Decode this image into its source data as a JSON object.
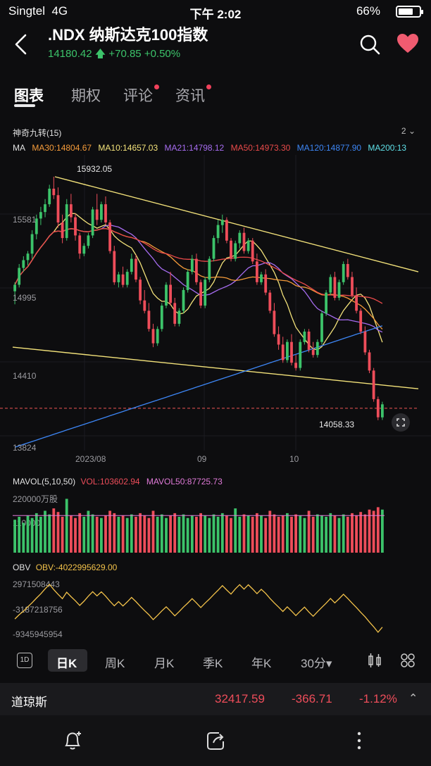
{
  "status_bar": {
    "carrier": "Singtel",
    "network": "4G",
    "time": "下午 2:02",
    "battery": "66%"
  },
  "header": {
    "title": ".NDX  纳斯达克100指数",
    "price": "14180.42",
    "change": "+70.85",
    "change_pct": "+0.50%",
    "price_color": "#3cc36a"
  },
  "tabs": [
    {
      "label": "图表",
      "active": true,
      "dot": false
    },
    {
      "label": "期权",
      "active": false,
      "dot": false
    },
    {
      "label": "评论",
      "active": false,
      "dot": true
    },
    {
      "label": "资讯",
      "active": false,
      "dot": true
    }
  ],
  "indicator": {
    "name": "神奇九转(15)",
    "count": "2"
  },
  "ma": {
    "label": "MA",
    "items": [
      {
        "text": "MA30:14804.67",
        "color": "#f59b3a"
      },
      {
        "text": "MA10:14657.03",
        "color": "#f3e27a"
      },
      {
        "text": "MA21:14798.12",
        "color": "#a66cf0"
      },
      {
        "text": "MA50:14973.30",
        "color": "#e94a4a"
      },
      {
        "text": "MA120:14877.90",
        "color": "#3d86f5"
      },
      {
        "text": "MA200:13",
        "color": "#5fe0e8"
      }
    ]
  },
  "price_axis": [
    "15581",
    "14995",
    "14410",
    "13824"
  ],
  "date_axis": [
    "2023/08",
    "09",
    "10"
  ],
  "annotations": {
    "high": "15932.05",
    "low": "14058.33"
  },
  "volume": {
    "label": "MAVOL(5,10,50)",
    "vol": "VOL:103602.94",
    "mavol50": "MAVOL50:87725.73",
    "axis": [
      "220000万股",
      "110000"
    ]
  },
  "obv": {
    "label": "OBV",
    "value": "OBV:-4022995629.00",
    "axis": [
      "2971508443",
      "-3187218756",
      "-9345945954"
    ]
  },
  "timeframes": [
    {
      "label": "日K",
      "active": true
    },
    {
      "label": "周K",
      "active": false
    },
    {
      "label": "月K",
      "active": false
    },
    {
      "label": "季K",
      "active": false
    },
    {
      "label": "年K",
      "active": false
    },
    {
      "label": "30分▾",
      "active": false
    }
  ],
  "ticker": {
    "name": "道琼斯",
    "price": "32417.59",
    "change": "-366.71",
    "change_pct": "-1.12%"
  },
  "colors": {
    "up": "#3cc36a",
    "down": "#ee4d5a",
    "background": "#0d0d0f"
  },
  "chart_data": {
    "type": "candlestick",
    "ylim": [
      13824,
      16100
    ],
    "candles": [
      [
        15050,
        15120,
        14950,
        15100
      ],
      [
        15100,
        15260,
        15080,
        15230
      ],
      [
        15230,
        15320,
        15200,
        15290
      ],
      [
        15290,
        15360,
        15250,
        15340
      ],
      [
        15340,
        15520,
        15300,
        15490
      ],
      [
        15490,
        15640,
        15450,
        15610
      ],
      [
        15610,
        15700,
        15560,
        15660
      ],
      [
        15660,
        15760,
        15620,
        15720
      ],
      [
        15720,
        15870,
        15700,
        15840
      ],
      [
        15840,
        15932,
        15760,
        15790
      ],
      [
        15790,
        15850,
        15540,
        15580
      ],
      [
        15580,
        15640,
        15420,
        15460
      ],
      [
        15460,
        15760,
        15440,
        15720
      ],
      [
        15720,
        15800,
        15580,
        15620
      ],
      [
        15620,
        15650,
        15440,
        15480
      ],
      [
        15480,
        15500,
        15300,
        15340
      ],
      [
        15340,
        15420,
        15320,
        15400
      ],
      [
        15400,
        15500,
        15380,
        15480
      ],
      [
        15480,
        15700,
        15460,
        15680
      ],
      [
        15680,
        15800,
        15560,
        15600
      ],
      [
        15600,
        15740,
        15580,
        15720
      ],
      [
        15720,
        15780,
        15560,
        15580
      ],
      [
        15580,
        15600,
        15340,
        15360
      ],
      [
        15360,
        15400,
        15100,
        15120
      ],
      [
        15120,
        15200,
        15080,
        15180
      ],
      [
        15180,
        15240,
        15080,
        15100
      ],
      [
        15100,
        15220,
        15080,
        15200
      ],
      [
        15200,
        15340,
        15180,
        15300
      ],
      [
        15300,
        15330,
        15120,
        15140
      ],
      [
        15140,
        15160,
        14950,
        14980
      ],
      [
        14980,
        15060,
        14880,
        14900
      ],
      [
        14900,
        14960,
        14740,
        14760
      ],
      [
        14760,
        14800,
        14620,
        14650
      ],
      [
        14650,
        14780,
        14630,
        14760
      ],
      [
        14760,
        14960,
        14740,
        14940
      ],
      [
        14940,
        15120,
        14920,
        15100
      ],
      [
        15100,
        15200,
        14940,
        14960
      ],
      [
        14960,
        15000,
        14780,
        14800
      ],
      [
        14800,
        14920,
        14780,
        14900
      ],
      [
        14900,
        15080,
        14880,
        15060
      ],
      [
        15060,
        15220,
        15040,
        15200
      ],
      [
        15200,
        15330,
        15180,
        15300
      ],
      [
        15300,
        15340,
        15100,
        15120
      ],
      [
        15120,
        15140,
        14920,
        14940
      ],
      [
        14940,
        15160,
        14920,
        15140
      ],
      [
        15140,
        15320,
        15120,
        15300
      ],
      [
        15300,
        15480,
        15280,
        15460
      ],
      [
        15460,
        15600,
        15420,
        15560
      ],
      [
        15560,
        15640,
        15500,
        15600
      ],
      [
        15600,
        15620,
        15420,
        15440
      ],
      [
        15440,
        15460,
        15280,
        15300
      ],
      [
        15300,
        15440,
        15280,
        15420
      ],
      [
        15420,
        15520,
        15380,
        15500
      ],
      [
        15500,
        15540,
        15340,
        15360
      ],
      [
        15360,
        15460,
        15340,
        15440
      ],
      [
        15440,
        15460,
        15260,
        15280
      ],
      [
        15280,
        15340,
        15100,
        15120
      ],
      [
        15120,
        15200,
        15100,
        15180
      ],
      [
        15180,
        15220,
        15020,
        15040
      ],
      [
        15040,
        15060,
        14880,
        14900
      ],
      [
        14900,
        14960,
        14700,
        14720
      ],
      [
        14720,
        14780,
        14600,
        14640
      ],
      [
        14640,
        14700,
        14500,
        14520
      ],
      [
        14520,
        14680,
        14500,
        14660
      ],
      [
        14660,
        14720,
        14480,
        14500
      ],
      [
        14500,
        14560,
        14440,
        14460
      ],
      [
        14460,
        14680,
        14440,
        14660
      ],
      [
        14660,
        14760,
        14640,
        14740
      ],
      [
        14740,
        14760,
        14580,
        14600
      ],
      [
        14600,
        14660,
        14540,
        14560
      ],
      [
        14560,
        14680,
        14540,
        14660
      ],
      [
        14660,
        14900,
        14640,
        14880
      ],
      [
        14880,
        15060,
        14860,
        15040
      ],
      [
        15040,
        15180,
        15020,
        15160
      ],
      [
        15160,
        15200,
        14980,
        15000
      ],
      [
        15000,
        15140,
        14980,
        15120
      ],
      [
        15120,
        15280,
        15100,
        15260
      ],
      [
        15260,
        15300,
        15140,
        15160
      ],
      [
        15160,
        15200,
        15000,
        15020
      ],
      [
        15020,
        15080,
        14880,
        14900
      ],
      [
        14900,
        14920,
        14720,
        14740
      ],
      [
        14740,
        14780,
        14560,
        14580
      ],
      [
        14580,
        14600,
        14420,
        14440
      ],
      [
        14440,
        14460,
        14200,
        14220
      ],
      [
        14220,
        14240,
        14058,
        14080
      ],
      [
        14080,
        14200,
        14060,
        14180
      ]
    ],
    "volumes": [
      0.55,
      0.6,
      0.5,
      0.62,
      0.58,
      0.66,
      0.6,
      0.7,
      0.64,
      0.74,
      0.68,
      0.6,
      0.9,
      0.62,
      0.58,
      0.66,
      0.6,
      0.7,
      0.64,
      0.6,
      0.58,
      0.62,
      0.7,
      0.66,
      0.6,
      0.62,
      0.58,
      0.64,
      0.6,
      0.66,
      0.62,
      0.58,
      0.7,
      0.6,
      0.64,
      0.58,
      0.62,
      0.66,
      0.6,
      0.64,
      0.58,
      0.62,
      0.6,
      0.66,
      0.62,
      0.58,
      0.64,
      0.6,
      0.66,
      0.62,
      0.58,
      0.74,
      0.6,
      0.64,
      0.62,
      0.6,
      0.66,
      0.62,
      0.58,
      0.7,
      0.64,
      0.6,
      0.62,
      0.66,
      0.6,
      0.64,
      0.62,
      0.58,
      0.7,
      0.6,
      0.64,
      0.62,
      0.6,
      0.66,
      0.62,
      0.58,
      0.64,
      0.6,
      0.66,
      0.62,
      0.68,
      0.64,
      0.72,
      0.7,
      0.76,
      0.72
    ]
  }
}
